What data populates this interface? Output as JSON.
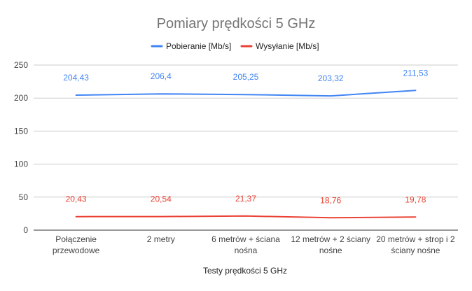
{
  "chart_data": {
    "type": "line",
    "title": "Pomiary prędkości 5 GHz",
    "xlabel": "Testy prędkości 5 GHz",
    "ylabel": "",
    "ylim": [
      0,
      250
    ],
    "yticks": [
      0,
      50,
      100,
      150,
      200,
      250
    ],
    "grid": true,
    "legend_position": "top",
    "categories": [
      [
        "Połączenie",
        "przewodowe"
      ],
      [
        "2 metry"
      ],
      [
        "6 metrów + ściana",
        "nośna"
      ],
      [
        "12 metrów + 2 ściany",
        "nośne"
      ],
      [
        "20 metrów + strop i 2",
        "ściany nośne"
      ]
    ],
    "series": [
      {
        "name": "Pobieranie [Mb/s]",
        "color": "#4285f4",
        "values": [
          204.43,
          206.4,
          205.25,
          203.32,
          211.53
        ],
        "labels": [
          "204,43",
          "206,4",
          "205,25",
          "203,32",
          "211,53"
        ]
      },
      {
        "name": "Wysyłanie [Mb/s]",
        "color": "#ea4335",
        "values": [
          20.43,
          20.54,
          21.37,
          18.76,
          19.78
        ],
        "labels": [
          "20,43",
          "20,54",
          "21,37",
          "18,76",
          "19,78"
        ]
      }
    ]
  }
}
